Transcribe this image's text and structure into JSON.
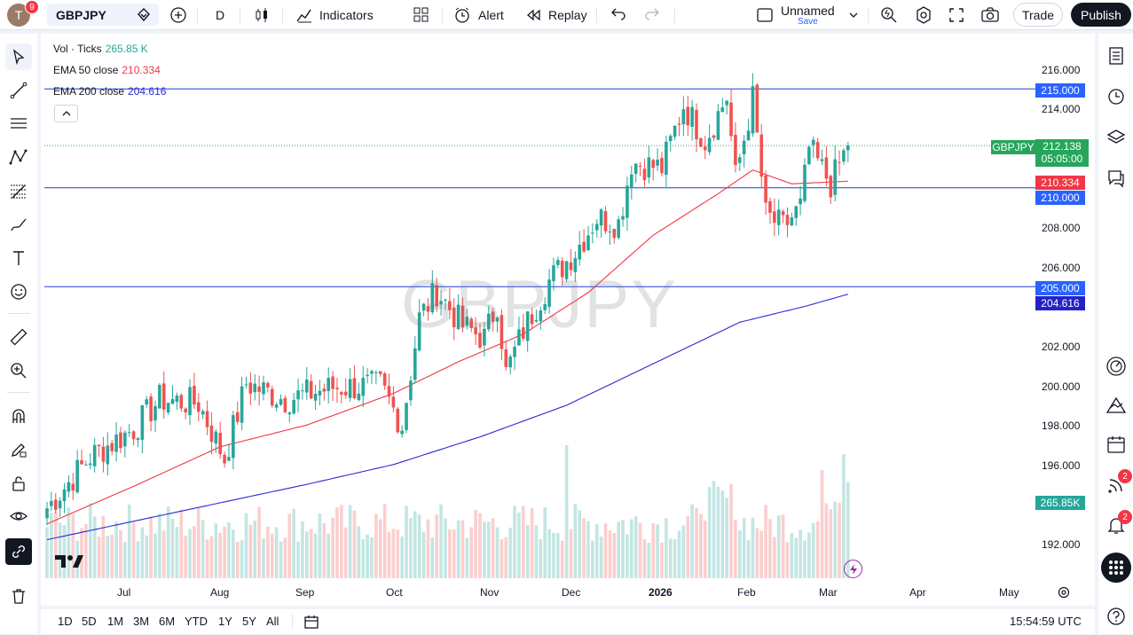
{
  "topbar": {
    "avatar_letter": "T",
    "avatar_badge": "9",
    "symbol": "GBPJPY",
    "interval": "D",
    "indicators_label": "Indicators",
    "alert_label": "Alert",
    "replay_label": "Replay",
    "layout_name": "Unnamed",
    "layout_save": "Save",
    "trade_label": "Trade",
    "publish_label": "Publish"
  },
  "legend": {
    "vol_label": "Vol · Ticks",
    "vol_value": "265.85 K",
    "ema50_label": "EMA 50 close",
    "ema50_value": "210.334",
    "ema200_label": "EMA 200 close",
    "ema200_value": "204.616"
  },
  "watermark": "GBPJPY",
  "price_axis": {
    "ticks": [
      "216.000",
      "214.000",
      "208.000",
      "206.000",
      "202.000",
      "200.000",
      "198.000",
      "196.000",
      "192.000"
    ],
    "labels": {
      "h215": "215.000",
      "symbol_tag": "GBPJPY",
      "last_price": "212.138",
      "countdown": "05:05:00",
      "ema50": "210.334",
      "h210": "210.000",
      "h205": "205.000",
      "ema200": "204.616",
      "volume": "265.85K"
    }
  },
  "time_axis": [
    "Jul",
    "Aug",
    "Sep",
    "Oct",
    "Nov",
    "Dec",
    "2026",
    "Feb",
    "Mar",
    "Apr",
    "May"
  ],
  "bottombar": {
    "timeframes": [
      "1D",
      "5D",
      "1M",
      "3M",
      "6M",
      "YTD",
      "1Y",
      "5Y",
      "All"
    ],
    "clock": "15:54:59 UTC"
  },
  "right_toolbar": {
    "signals_badge": "2",
    "alerts_badge": "2"
  },
  "colors": {
    "up": "#26a69a",
    "down": "#ef5350",
    "ema50": "#f23645",
    "ema200": "#2a2ad0",
    "hline": "#1e3ed8",
    "last_price_bg": "#26a65b"
  },
  "chart_data": {
    "type": "candlestick",
    "symbol": "GBPJPY",
    "interval": "D",
    "horizontal_lines": [
      215.0,
      210.0,
      205.0
    ],
    "last_price": 212.138,
    "ema50_last": 210.334,
    "ema200_last": 204.616,
    "ylim": [
      190.5,
      217.0
    ],
    "months": [
      "Jul",
      "Aug",
      "Sep",
      "Oct",
      "Nov",
      "Dec",
      "2026",
      "Feb",
      "Mar"
    ],
    "close_anchors": [
      {
        "i": 0,
        "c": 193.8
      },
      {
        "i": 10,
        "c": 196.4
      },
      {
        "i": 20,
        "c": 197.8
      },
      {
        "i": 26,
        "c": 199.3
      },
      {
        "i": 35,
        "c": 199.1
      },
      {
        "i": 41,
        "c": 196.3
      },
      {
        "i": 46,
        "c": 200.1
      },
      {
        "i": 55,
        "c": 199.3
      },
      {
        "i": 66,
        "c": 199.9
      },
      {
        "i": 77,
        "c": 200.0
      },
      {
        "i": 82,
        "c": 198.0
      },
      {
        "i": 86,
        "c": 203.4
      },
      {
        "i": 90,
        "c": 204.8
      },
      {
        "i": 96,
        "c": 203.0
      },
      {
        "i": 101,
        "c": 202.4
      },
      {
        "i": 104,
        "c": 204.2
      },
      {
        "i": 106,
        "c": 200.6
      },
      {
        "i": 110,
        "c": 202.8
      },
      {
        "i": 116,
        "c": 205.3
      },
      {
        "i": 122,
        "c": 206.8
      },
      {
        "i": 127,
        "c": 208.5
      },
      {
        "i": 132,
        "c": 208.2
      },
      {
        "i": 135,
        "c": 211.3
      },
      {
        "i": 142,
        "c": 211.0
      },
      {
        "i": 147,
        "c": 214.2
      },
      {
        "i": 152,
        "c": 212.4
      },
      {
        "i": 157,
        "c": 214.6
      },
      {
        "i": 159,
        "c": 210.5
      },
      {
        "i": 163,
        "c": 214.5
      },
      {
        "i": 166,
        "c": 208.6
      },
      {
        "i": 170,
        "c": 208.0
      },
      {
        "i": 174,
        "c": 209.0
      },
      {
        "i": 176,
        "c": 212.0
      },
      {
        "i": 181,
        "c": 210.2
      },
      {
        "i": 185,
        "c": 212.138
      }
    ],
    "ema50_anchors": [
      {
        "i": 0,
        "v": 193.0
      },
      {
        "i": 20,
        "v": 194.9
      },
      {
        "i": 40,
        "v": 196.9
      },
      {
        "i": 60,
        "v": 198.0
      },
      {
        "i": 80,
        "v": 199.6
      },
      {
        "i": 95,
        "v": 201.2
      },
      {
        "i": 110,
        "v": 202.6
      },
      {
        "i": 125,
        "v": 204.7
      },
      {
        "i": 140,
        "v": 207.6
      },
      {
        "i": 155,
        "v": 209.7
      },
      {
        "i": 163,
        "v": 210.9
      },
      {
        "i": 172,
        "v": 210.2
      },
      {
        "i": 185,
        "v": 210.334
      }
    ],
    "ema200_anchors": [
      {
        "i": 0,
        "v": 192.2
      },
      {
        "i": 30,
        "v": 193.6
      },
      {
        "i": 60,
        "v": 195.0
      },
      {
        "i": 80,
        "v": 196.0
      },
      {
        "i": 100,
        "v": 197.4
      },
      {
        "i": 120,
        "v": 199.0
      },
      {
        "i": 140,
        "v": 201.1
      },
      {
        "i": 160,
        "v": 203.2
      },
      {
        "i": 175,
        "v": 204.0
      },
      {
        "i": 185,
        "v": 204.616
      }
    ],
    "volume_last": "265.85K"
  }
}
